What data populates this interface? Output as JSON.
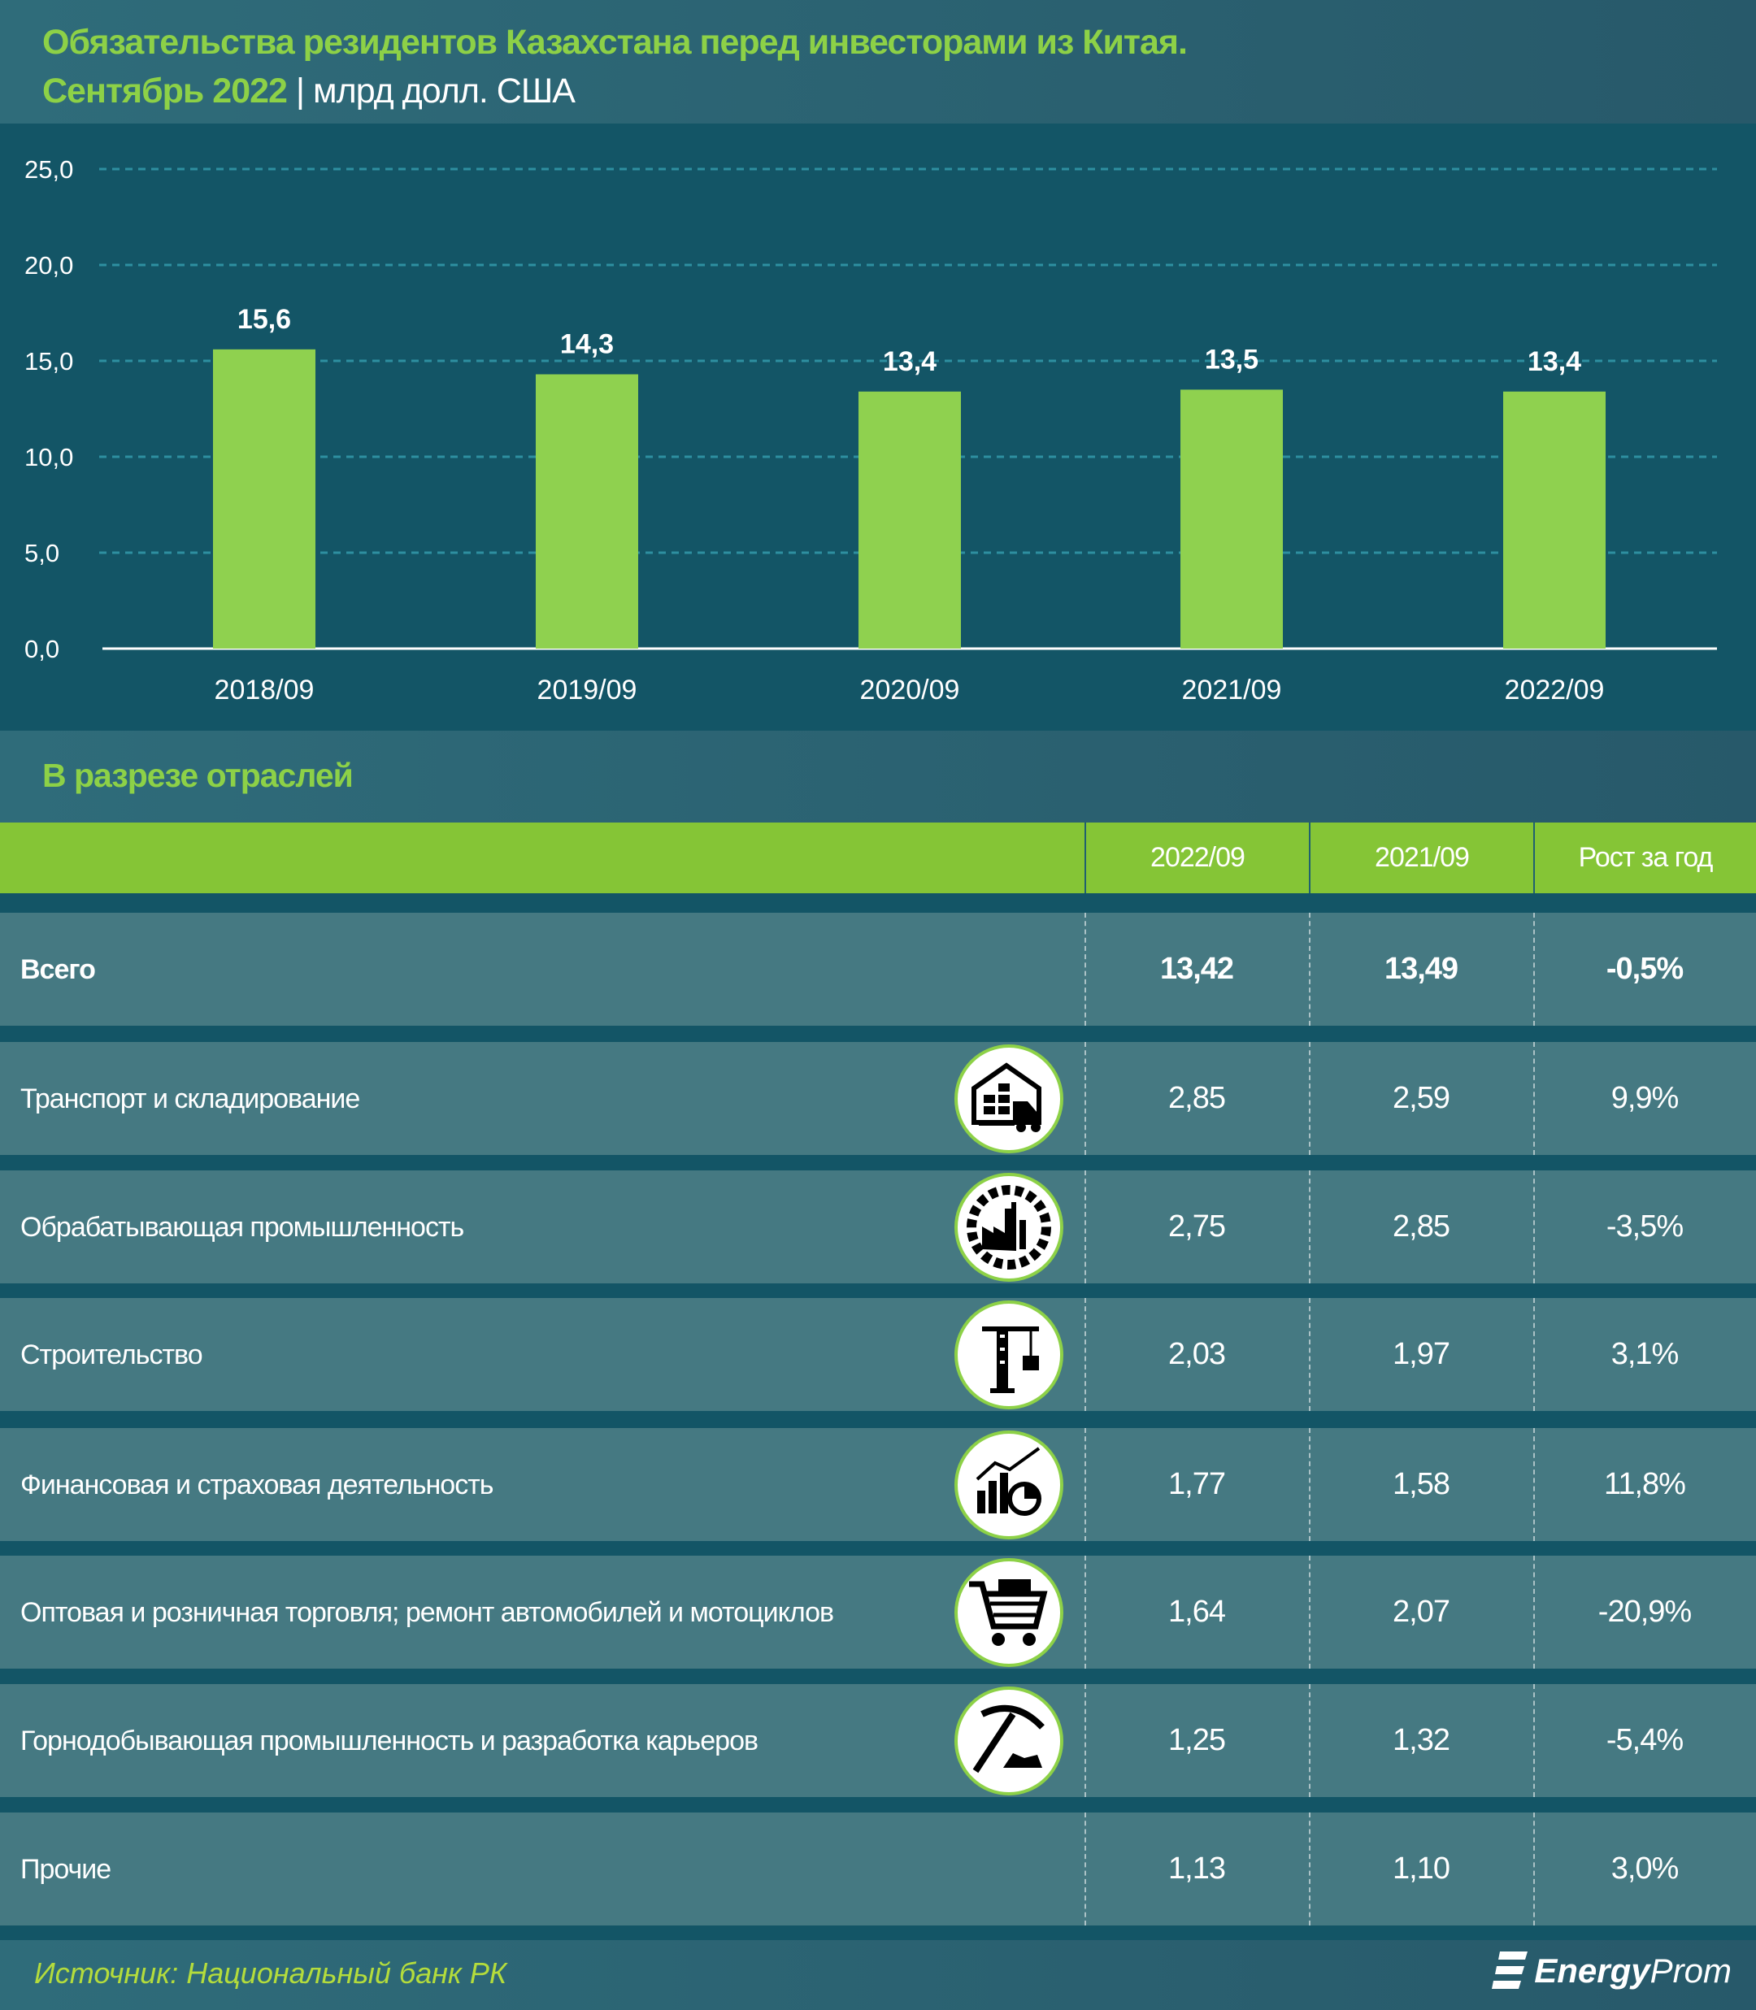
{
  "header": {
    "title_line1": "Обязательства резидентов Казахстана перед инвесторами из Китая.",
    "title_period": "Сентябрь 2022",
    "title_sep": "|",
    "title_unit": "млрд долл. США"
  },
  "chart_data": {
    "type": "bar",
    "categories": [
      "2018/09",
      "2019/09",
      "2020/09",
      "2021/09",
      "2022/09"
    ],
    "values": [
      15.6,
      14.3,
      13.4,
      13.5,
      13.4
    ],
    "value_labels": [
      "15,6",
      "14,3",
      "13,4",
      "13,5",
      "13,4"
    ],
    "yticks": [
      "0,0",
      "5,0",
      "10,0",
      "15,0",
      "20,0",
      "25,0"
    ],
    "ytick_values": [
      0,
      5,
      10,
      15,
      20,
      25
    ],
    "ylim": [
      0,
      25
    ],
    "grid": true,
    "bar_color": "#8fd14f"
  },
  "table": {
    "title": "В разрезе отраслей",
    "columns": [
      "2022/09",
      "2021/09",
      "Рост за год"
    ],
    "rows": [
      {
        "label": "Всего",
        "v1": "13,42",
        "v2": "13,49",
        "growth": "-0,5%",
        "icon": ""
      },
      {
        "label": "Транспорт и складирование",
        "v1": "2,85",
        "v2": "2,59",
        "growth": "9,9%",
        "icon": "warehouse-truck-icon"
      },
      {
        "label": "Обрабатывающая промышленность",
        "v1": "2,75",
        "v2": "2,85",
        "growth": "-3,5%",
        "icon": "factory-gear-icon"
      },
      {
        "label": "Строительство",
        "v1": "2,03",
        "v2": "1,97",
        "growth": "3,1%",
        "icon": "crane-icon"
      },
      {
        "label": "Финансовая и страховая деятельность",
        "v1": "1,77",
        "v2": "1,58",
        "growth": "11,8%",
        "icon": "finance-chart-icon"
      },
      {
        "label": "Оптовая и розничная торговля; ремонт автомобилей и мотоциклов",
        "v1": "1,64",
        "v2": "2,07",
        "growth": "-20,9%",
        "icon": "shopping-cart-icon"
      },
      {
        "label": "Горнодобывающая промышленность и разработка карьеров",
        "v1": "1,25",
        "v2": "1,32",
        "growth": "-5,4%",
        "icon": "pickaxe-icon"
      },
      {
        "label": "Прочие",
        "v1": "1,13",
        "v2": "1,10",
        "growth": "3,0%",
        "icon": ""
      }
    ]
  },
  "footer": {
    "source": "Источник: Национальный банк РК",
    "logo": "EnergyProm"
  },
  "colors": {
    "accent_green": "#8dd147",
    "background": "#135566",
    "row": "#457982",
    "header_green": "#85c536"
  }
}
